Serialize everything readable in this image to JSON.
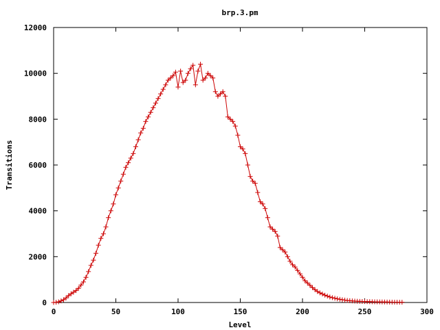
{
  "chart_data": {
    "type": "line",
    "title": "brp.3.pm",
    "xlabel": "Level",
    "ylabel": "Transitions",
    "xlim": [
      0,
      300
    ],
    "ylim": [
      0,
      12000
    ],
    "x_ticks": [
      "0",
      "50",
      "100",
      "150",
      "200",
      "250",
      "300"
    ],
    "y_ticks": [
      "0",
      "2000",
      "4000",
      "6000",
      "8000",
      "10000",
      "12000"
    ],
    "grid": false,
    "legend": "none",
    "marker": "plus",
    "series_color": "#cc0000",
    "series": [
      {
        "x": [
          0,
          2,
          4,
          6,
          8,
          10,
          12,
          14,
          16,
          18,
          20,
          22,
          24,
          26,
          28,
          30,
          32,
          34,
          36,
          38,
          40,
          42,
          44,
          46,
          48,
          50,
          52,
          54,
          56,
          58,
          60,
          62,
          64,
          66,
          68,
          70,
          72,
          74,
          76,
          78,
          80,
          82,
          84,
          86,
          88,
          90,
          92,
          94,
          96,
          98,
          100,
          102,
          104,
          106,
          108,
          110,
          112,
          114,
          116,
          118,
          120,
          122,
          124,
          126,
          128,
          130,
          132,
          134,
          136,
          138,
          140,
          142,
          144,
          146,
          148,
          150,
          152,
          154,
          156,
          158,
          160,
          162,
          164,
          166,
          168,
          170,
          172,
          174,
          176,
          178,
          180,
          182,
          184,
          186,
          188,
          190,
          192,
          194,
          196,
          198,
          200,
          202,
          204,
          206,
          208,
          210,
          212,
          214,
          216,
          218,
          220,
          222,
          224,
          226,
          228,
          230,
          232,
          234,
          236,
          238,
          240,
          242,
          244,
          246,
          248,
          250,
          252,
          254,
          256,
          258,
          260,
          262,
          264,
          266,
          268,
          270,
          272,
          274,
          276,
          278,
          280
        ],
        "y": [
          0,
          10,
          30,
          70,
          120,
          200,
          300,
          380,
          450,
          520,
          620,
          760,
          900,
          1100,
          1350,
          1620,
          1850,
          2150,
          2500,
          2800,
          3000,
          3300,
          3700,
          4000,
          4300,
          4700,
          5000,
          5300,
          5600,
          5900,
          6100,
          6300,
          6500,
          6800,
          7100,
          7400,
          7600,
          7900,
          8100,
          8300,
          8500,
          8700,
          8900,
          9100,
          9300,
          9500,
          9700,
          9800,
          9900,
          10050,
          9400,
          10100,
          9600,
          9700,
          10000,
          10200,
          10350,
          9500,
          10100,
          10400,
          9700,
          9800,
          10000,
          9900,
          9800,
          9200,
          9000,
          9100,
          9200,
          9000,
          8100,
          8000,
          7900,
          7700,
          7300,
          6800,
          6700,
          6500,
          6000,
          5500,
          5300,
          5200,
          4800,
          4400,
          4300,
          4100,
          3700,
          3300,
          3200,
          3100,
          2900,
          2400,
          2300,
          2200,
          2000,
          1800,
          1650,
          1550,
          1400,
          1250,
          1100,
          950,
          850,
          750,
          650,
          560,
          480,
          420,
          370,
          320,
          280,
          240,
          210,
          185,
          160,
          140,
          120,
          105,
          90,
          80,
          70,
          62,
          55,
          50,
          45,
          42,
          38,
          35,
          32,
          30,
          28,
          26,
          24,
          22,
          20,
          18,
          16,
          15,
          14,
          13,
          12
        ]
      }
    ]
  }
}
